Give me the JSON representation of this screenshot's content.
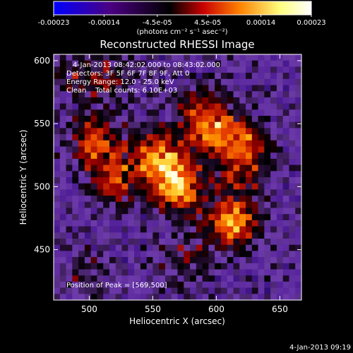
{
  "colorbar": {
    "tick_labels": [
      "-0.00023",
      "-0.00014",
      "-4.5e-05",
      "4.5e-05",
      "0.00014",
      "0.00023"
    ],
    "tick_values": [
      -0.00023,
      -0.00014,
      -4.5e-05,
      4.5e-05,
      0.00014,
      0.00023
    ],
    "range": [
      -0.00023,
      0.00023
    ],
    "units_label": "(photons cm⁻² s⁻¹ asec⁻²)",
    "colors": [
      "#0000ff",
      "#4b0082",
      "#000000",
      "#c80000",
      "#ff8000",
      "#ffff80",
      "#ffffff"
    ]
  },
  "chart_data": {
    "type": "heatmap",
    "title": "Reconstructed RHESSI Image",
    "xlabel": "Heliocentric X (arcsec)",
    "ylabel": "Heliocentric Y (arcsec)",
    "xlim": [
      472,
      667
    ],
    "ylim": [
      410,
      605
    ],
    "x_ticks": [
      500,
      550,
      600,
      650
    ],
    "y_ticks": [
      450,
      500,
      550,
      600
    ],
    "annotations": {
      "time_range": "4-Jan-2013 08:42:02.000 to 08:43:02.000",
      "detectors": "Detectors: 3F 5F 6F 7F 8F 9F, Att 0",
      "energy": "Energy Range: 12.0 - 25.0 keV",
      "method": "Clean    Total counts: 6.10E+03",
      "peak": "Position of Peak = [569,500]"
    },
    "peak": [
      569,
      500
    ],
    "bright_sources": [
      {
        "x": 569,
        "y": 500,
        "level": 1.0
      },
      {
        "x": 612,
        "y": 471,
        "level": 0.9
      },
      {
        "x": 555,
        "y": 525,
        "level": 0.75
      },
      {
        "x": 600,
        "y": 540,
        "level": 0.6
      },
      {
        "x": 625,
        "y": 535,
        "level": 0.5
      },
      {
        "x": 590,
        "y": 560,
        "level": 0.55
      },
      {
        "x": 505,
        "y": 535,
        "level": 0.7
      },
      {
        "x": 522,
        "y": 505,
        "level": 0.6
      },
      {
        "x": 520,
        "y": 585,
        "level": 0.35
      },
      {
        "x": 620,
        "y": 510,
        "level": 0.4
      },
      {
        "x": 490,
        "y": 590,
        "level": 0.3
      },
      {
        "x": 575,
        "y": 440,
        "level": 0.35
      },
      {
        "x": 500,
        "y": 430,
        "level": 0.25
      }
    ]
  },
  "footer": {
    "timestamp": "4-Jan-2013 09:19"
  }
}
